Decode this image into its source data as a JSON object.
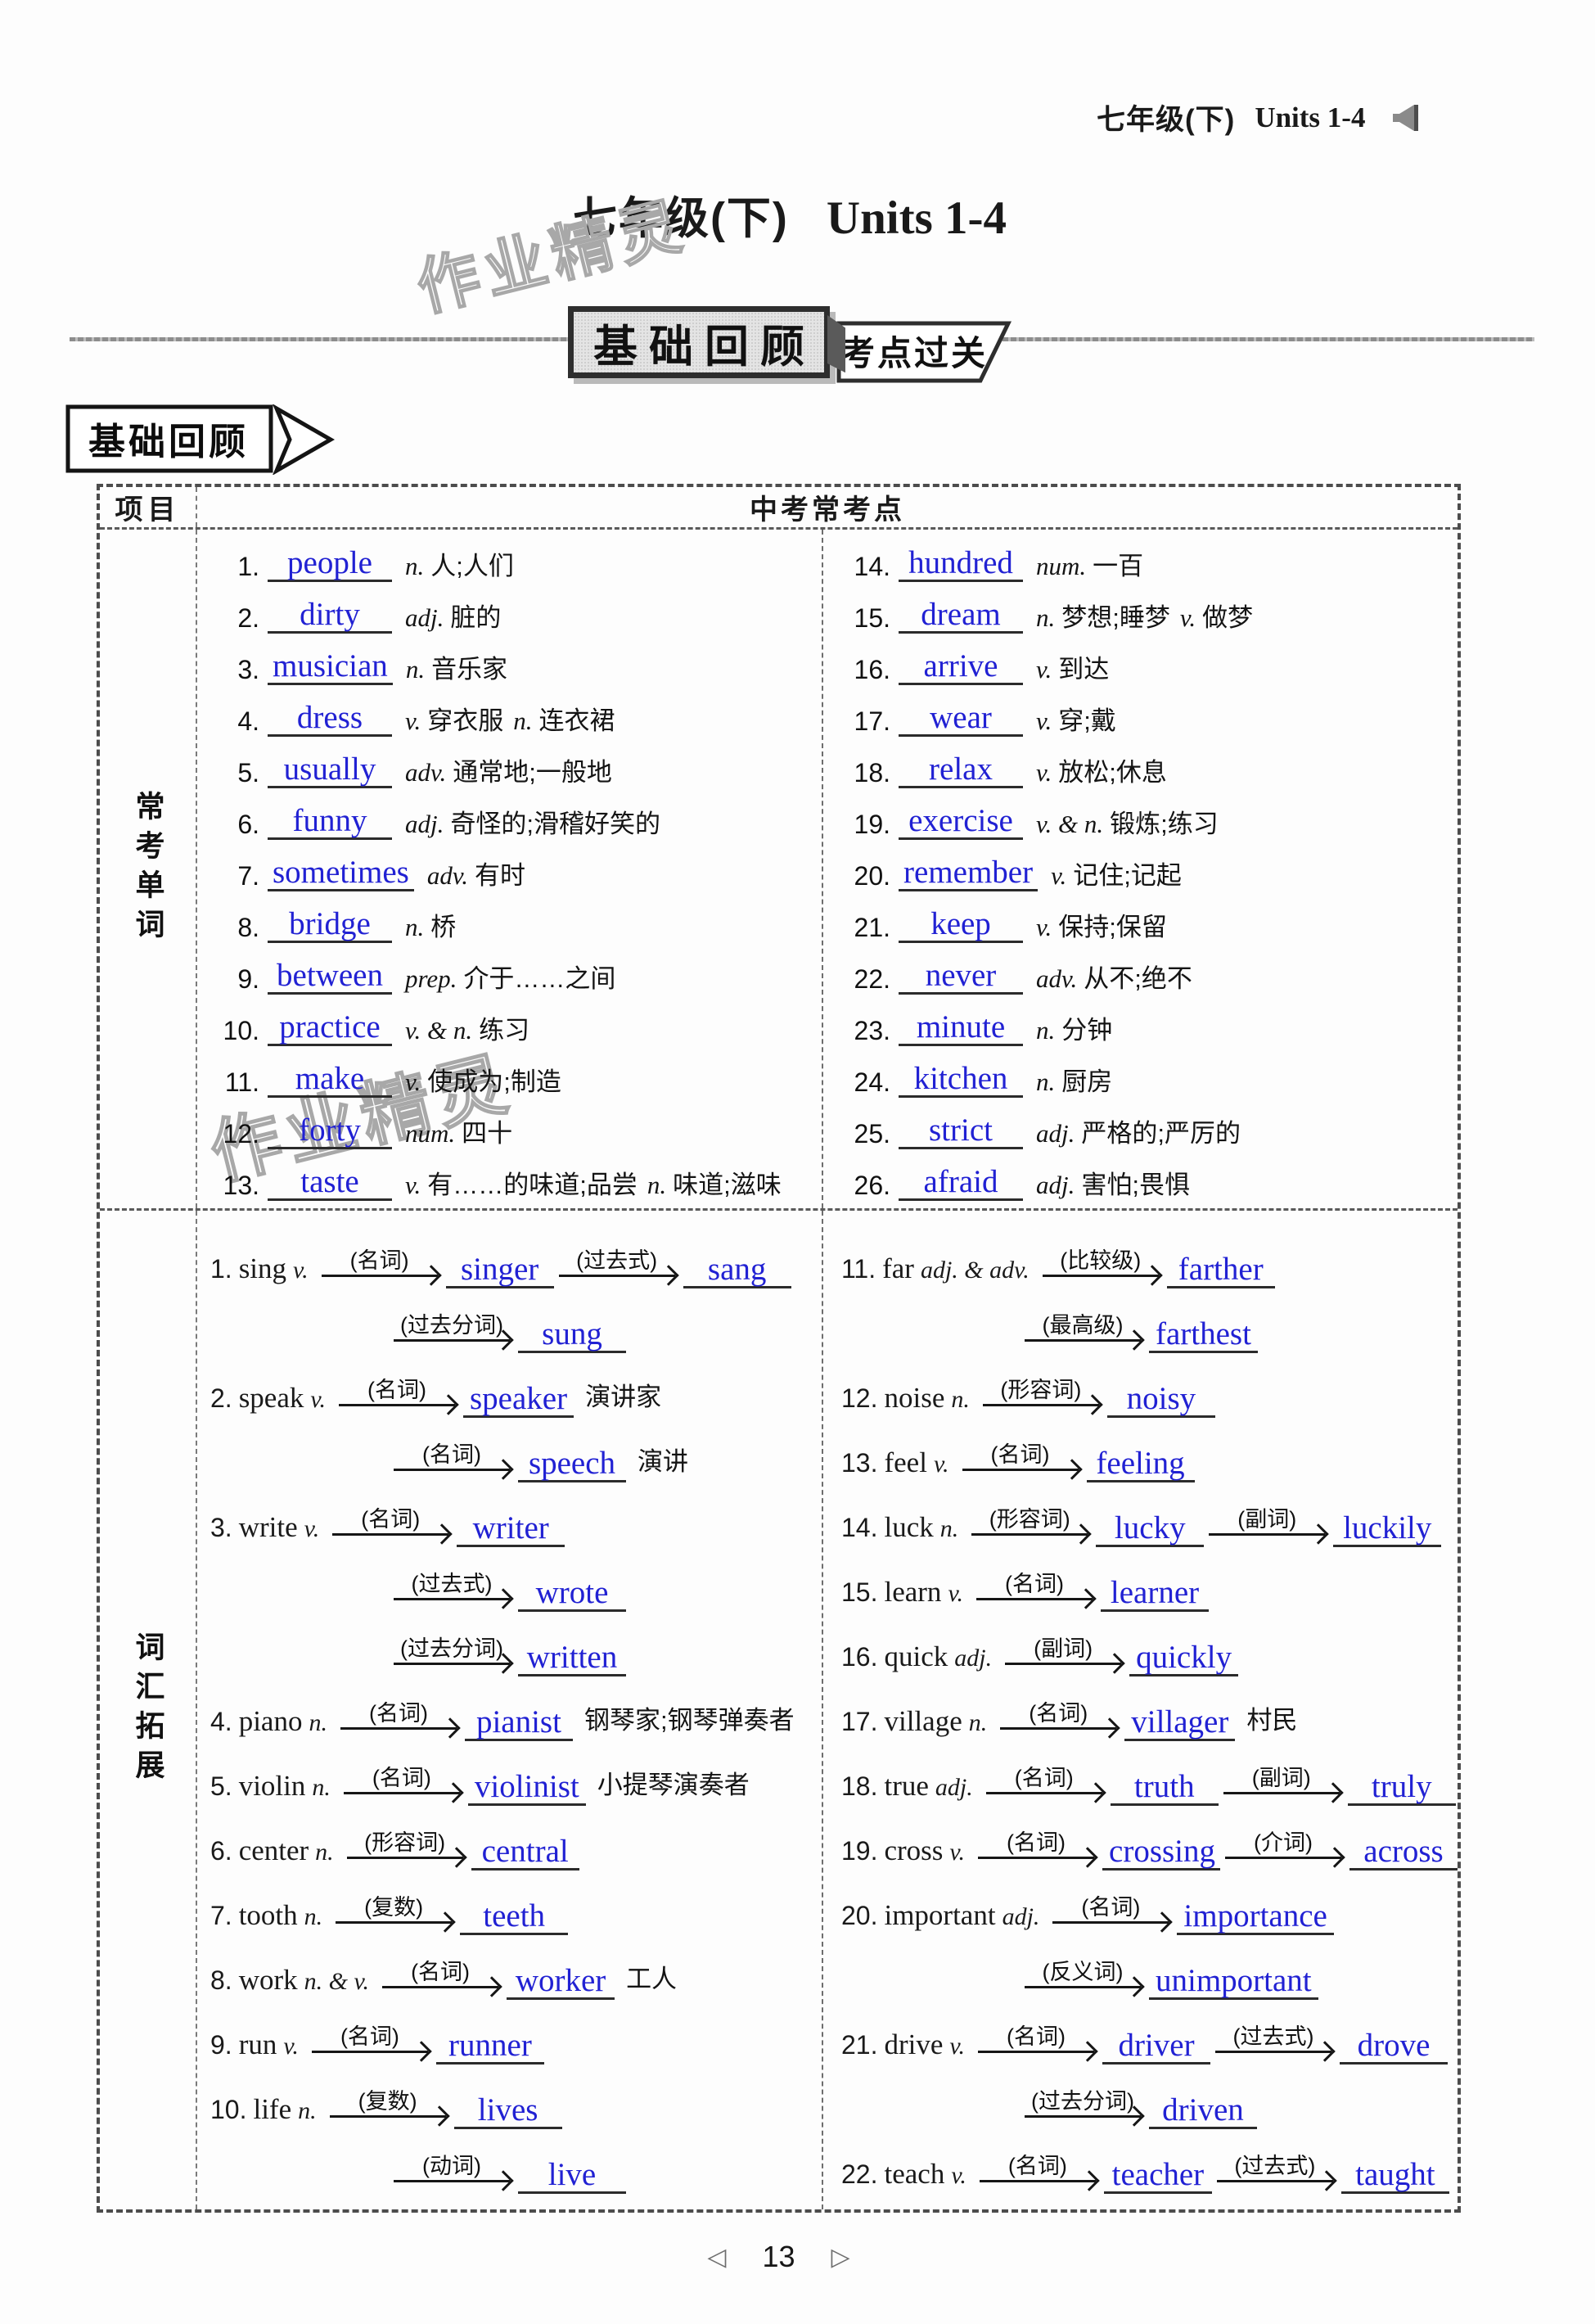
{
  "colors": {
    "answer_blue": "#2121d3"
  },
  "page": {
    "header": {
      "grade": "七年级(下)",
      "units": "Units 1-4"
    },
    "title": {
      "grade": "七年级(下)",
      "units": "Units 1-4"
    },
    "watermark": "作业精灵",
    "banner": {
      "primary": "基础回顾",
      "secondary": "考点过关"
    },
    "section_marker": "基础回顾",
    "footer": {
      "page_number": "13",
      "prev_icon": "◁",
      "next_icon": "▷"
    }
  },
  "table": {
    "header": {
      "col1": "项目",
      "col2": "中考常考点"
    },
    "sections": [
      {
        "label": "常考单词",
        "left": [
          {
            "num": "1.",
            "word": "people",
            "defs": [
              {
                "pos": "n.",
                "zh": "人;人们"
              }
            ]
          },
          {
            "num": "2.",
            "word": "dirty",
            "defs": [
              {
                "pos": "adj.",
                "zh": "脏的"
              }
            ]
          },
          {
            "num": "3.",
            "word": "musician",
            "defs": [
              {
                "pos": "n.",
                "zh": "音乐家"
              }
            ]
          },
          {
            "num": "4.",
            "word": "dress",
            "defs": [
              {
                "pos": "v.",
                "zh": "穿衣服"
              },
              {
                "pos": "n.",
                "zh": "连衣裙"
              }
            ]
          },
          {
            "num": "5.",
            "word": "usually",
            "defs": [
              {
                "pos": "adv.",
                "zh": "通常地;一般地"
              }
            ]
          },
          {
            "num": "6.",
            "word": "funny",
            "defs": [
              {
                "pos": "adj.",
                "zh": "奇怪的;滑稽好笑的"
              }
            ]
          },
          {
            "num": "7.",
            "word": "sometimes",
            "defs": [
              {
                "pos": "adv.",
                "zh": "有时"
              }
            ]
          },
          {
            "num": "8.",
            "word": "bridge",
            "defs": [
              {
                "pos": "n.",
                "zh": "桥"
              }
            ]
          },
          {
            "num": "9.",
            "word": "between",
            "defs": [
              {
                "pos": "prep.",
                "zh": "介于……之间"
              }
            ]
          },
          {
            "num": "10.",
            "word": "practice",
            "defs": [
              {
                "pos": "v. & n.",
                "zh": "练习"
              }
            ]
          },
          {
            "num": "11.",
            "word": "make",
            "defs": [
              {
                "pos": "v.",
                "zh": "使成为;制造"
              }
            ]
          },
          {
            "num": "12.",
            "word": "forty",
            "defs": [
              {
                "pos": "num.",
                "zh": "四十"
              }
            ]
          },
          {
            "num": "13.",
            "word": "taste",
            "defs": [
              {
                "pos": "v.",
                "zh": "有……的味道;品尝"
              },
              {
                "pos": "n.",
                "zh": "味道;滋味"
              }
            ]
          }
        ],
        "right": [
          {
            "num": "14.",
            "word": "hundred",
            "defs": [
              {
                "pos": "num.",
                "zh": "一百"
              }
            ]
          },
          {
            "num": "15.",
            "word": "dream",
            "defs": [
              {
                "pos": "n.",
                "zh": "梦想;睡梦"
              },
              {
                "pos": "v.",
                "zh": "做梦"
              }
            ]
          },
          {
            "num": "16.",
            "word": "arrive",
            "defs": [
              {
                "pos": "v.",
                "zh": "到达"
              }
            ]
          },
          {
            "num": "17.",
            "word": "wear",
            "defs": [
              {
                "pos": "v.",
                "zh": "穿;戴"
              }
            ]
          },
          {
            "num": "18.",
            "word": "relax",
            "defs": [
              {
                "pos": "v.",
                "zh": "放松;休息"
              }
            ]
          },
          {
            "num": "19.",
            "word": "exercise",
            "defs": [
              {
                "pos": "v. & n.",
                "zh": "锻炼;练习"
              }
            ]
          },
          {
            "num": "20.",
            "word": "remember",
            "defs": [
              {
                "pos": "v.",
                "zh": "记住;记起"
              }
            ]
          },
          {
            "num": "21.",
            "word": "keep",
            "defs": [
              {
                "pos": "v.",
                "zh": "保持;保留"
              }
            ]
          },
          {
            "num": "22.",
            "word": "never",
            "defs": [
              {
                "pos": "adv.",
                "zh": "从不;绝不"
              }
            ]
          },
          {
            "num": "23.",
            "word": "minute",
            "defs": [
              {
                "pos": "n.",
                "zh": "分钟"
              }
            ]
          },
          {
            "num": "24.",
            "word": "kitchen",
            "defs": [
              {
                "pos": "n.",
                "zh": "厨房"
              }
            ]
          },
          {
            "num": "25.",
            "word": "strict",
            "defs": [
              {
                "pos": "adj.",
                "zh": "严格的;严厉的"
              }
            ]
          },
          {
            "num": "26.",
            "word": "afraid",
            "defs": [
              {
                "pos": "adj.",
                "zh": "害怕;畏惧"
              }
            ]
          }
        ]
      },
      {
        "label": "词汇拓展",
        "left": [
          {
            "num": "1.",
            "word": "sing",
            "pos": "v.",
            "lines": [
              [
                {
                  "label": "(名词)",
                  "answer": "singer"
                },
                {
                  "label": "(过去式)",
                  "answer": "sang"
                }
              ],
              [
                {
                  "label": "(过去分词)",
                  "answer": "sung"
                }
              ]
            ]
          },
          {
            "num": "2.",
            "word": "speak",
            "pos": "v.",
            "lines": [
              [
                {
                  "label": "(名词)",
                  "answer": "speaker",
                  "note": "演讲家"
                }
              ],
              [
                {
                  "label": "(名词)",
                  "answer": "speech",
                  "note": "演讲"
                }
              ]
            ]
          },
          {
            "num": "3.",
            "word": "write",
            "pos": "v.",
            "lines": [
              [
                {
                  "label": "(名词)",
                  "answer": "writer"
                }
              ],
              [
                {
                  "label": "(过去式)",
                  "answer": "wrote"
                }
              ],
              [
                {
                  "label": "(过去分词)",
                  "answer": "written"
                }
              ]
            ]
          },
          {
            "num": "4.",
            "word": "piano",
            "pos": "n.",
            "lines": [
              [
                {
                  "label": "(名词)",
                  "answer": "pianist",
                  "note": "钢琴家;钢琴弹奏者"
                }
              ]
            ]
          },
          {
            "num": "5.",
            "word": "violin",
            "pos": "n.",
            "lines": [
              [
                {
                  "label": "(名词)",
                  "answer": "violinist",
                  "note": "小提琴演奏者"
                }
              ]
            ]
          },
          {
            "num": "6.",
            "word": "center",
            "pos": "n.",
            "lines": [
              [
                {
                  "label": "(形容词)",
                  "answer": "central"
                }
              ]
            ]
          },
          {
            "num": "7.",
            "word": "tooth",
            "pos": "n.",
            "lines": [
              [
                {
                  "label": "(复数)",
                  "answer": "teeth"
                }
              ]
            ]
          },
          {
            "num": "8.",
            "word": "work",
            "pos": "n. & v.",
            "lines": [
              [
                {
                  "label": "(名词)",
                  "answer": "worker",
                  "note": "工人"
                }
              ]
            ]
          },
          {
            "num": "9.",
            "word": "run",
            "pos": "v.",
            "lines": [
              [
                {
                  "label": "(名词)",
                  "answer": "runner"
                }
              ]
            ]
          },
          {
            "num": "10.",
            "word": "life",
            "pos": "n.",
            "lines": [
              [
                {
                  "label": "(复数)",
                  "answer": "lives"
                }
              ],
              [
                {
                  "label": "(动词)",
                  "answer": "live"
                }
              ]
            ]
          }
        ],
        "right": [
          {
            "num": "11.",
            "word": "far",
            "pos": "adj. & adv.",
            "lines": [
              [
                {
                  "label": "(比较级)",
                  "answer": "farther"
                }
              ],
              [
                {
                  "label": "(最高级)",
                  "answer": "farthest"
                }
              ]
            ]
          },
          {
            "num": "12.",
            "word": "noise",
            "pos": "n.",
            "lines": [
              [
                {
                  "label": "(形容词)",
                  "answer": "noisy"
                }
              ]
            ]
          },
          {
            "num": "13.",
            "word": "feel",
            "pos": "v.",
            "lines": [
              [
                {
                  "label": "(名词)",
                  "answer": "feeling"
                }
              ]
            ]
          },
          {
            "num": "14.",
            "word": "luck",
            "pos": "n.",
            "lines": [
              [
                {
                  "label": "(形容词)",
                  "answer": "lucky"
                },
                {
                  "label": "(副词)",
                  "answer": "luckily"
                }
              ]
            ]
          },
          {
            "num": "15.",
            "word": "learn",
            "pos": "v.",
            "lines": [
              [
                {
                  "label": "(名词)",
                  "answer": "learner"
                }
              ]
            ]
          },
          {
            "num": "16.",
            "word": "quick",
            "pos": "adj.",
            "lines": [
              [
                {
                  "label": "(副词)",
                  "answer": "quickly"
                }
              ]
            ]
          },
          {
            "num": "17.",
            "word": "village",
            "pos": "n.",
            "lines": [
              [
                {
                  "label": "(名词)",
                  "answer": "villager",
                  "note": "村民"
                }
              ]
            ]
          },
          {
            "num": "18.",
            "word": "true",
            "pos": "adj.",
            "lines": [
              [
                {
                  "label": "(名词)",
                  "answer": "truth"
                },
                {
                  "label": "(副词)",
                  "answer": "truly"
                }
              ]
            ]
          },
          {
            "num": "19.",
            "word": "cross",
            "pos": "v.",
            "lines": [
              [
                {
                  "label": "(名词)",
                  "answer": "crossing"
                },
                {
                  "label": "(介词)",
                  "answer": "across"
                }
              ]
            ]
          },
          {
            "num": "20.",
            "word": "important",
            "pos": "adj.",
            "lines": [
              [
                {
                  "label": "(名词)",
                  "answer": "importance"
                }
              ],
              [
                {
                  "label": "(反义词)",
                  "answer": "unimportant"
                }
              ]
            ]
          },
          {
            "num": "21.",
            "word": "drive",
            "pos": "v.",
            "lines": [
              [
                {
                  "label": "(名词)",
                  "answer": "driver"
                },
                {
                  "label": "(过去式)",
                  "answer": "drove"
                }
              ],
              [
                {
                  "label": "(过去分词)",
                  "answer": "driven"
                }
              ]
            ]
          },
          {
            "num": "22.",
            "word": "teach",
            "pos": "v.",
            "lines": [
              [
                {
                  "label": "(名词)",
                  "answer": "teacher"
                },
                {
                  "label": "(过去式)",
                  "answer": "taught"
                }
              ]
            ]
          }
        ]
      }
    ]
  }
}
